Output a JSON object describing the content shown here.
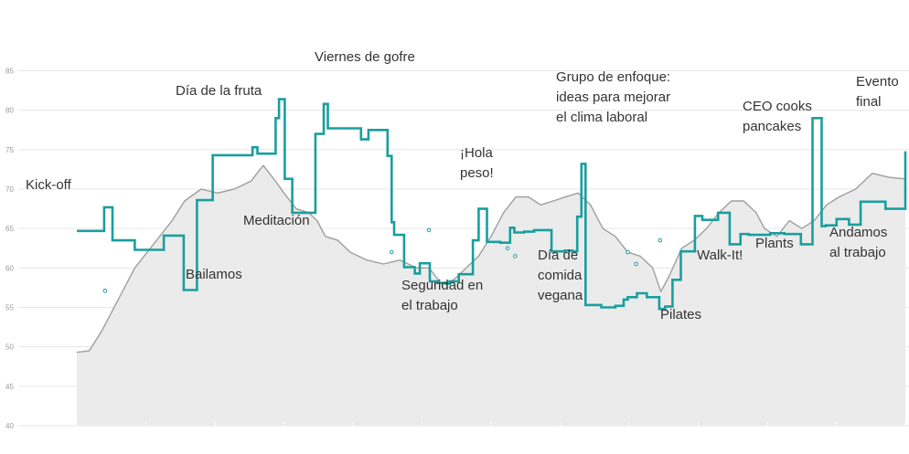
{
  "colors": {
    "background": "#ffffff",
    "grid": "#e6e6e6",
    "area_fill": "#ebebeb",
    "area_line": "#9e9e9e",
    "step_line": "#1a9e9e",
    "scatter": "#1a9e9e",
    "tick_text": "#999999",
    "annotation_text": "#333333"
  },
  "chart_data": {
    "type": "line",
    "title": "",
    "xlabel": "",
    "ylabel": "",
    "ylim": [
      40,
      87
    ],
    "xlim": [
      0,
      100
    ],
    "grid": "horizontal",
    "legend": "none",
    "y_ticks": [
      "40",
      "45",
      "50",
      "55",
      "60",
      "65",
      "70",
      "75",
      "80",
      "85"
    ],
    "series": [
      {
        "kind": "area",
        "x": [
          0,
          1.5,
          3,
          5,
          7,
          8.5,
          10,
          11.5,
          13,
          15,
          17,
          19,
          21,
          22.5,
          24,
          25,
          26.5,
          28,
          29,
          30,
          31.5,
          33,
          35,
          37,
          39,
          41,
          42.5,
          44,
          45.5,
          47,
          48.5,
          50,
          51.5,
          53,
          54.5,
          56,
          57.5,
          59,
          60.5,
          62,
          63.5,
          65,
          66.5,
          68,
          69.5,
          70.5,
          71.5,
          73,
          74.5,
          76,
          77.5,
          79,
          80.5,
          82,
          83,
          84.5,
          86,
          87.5,
          89,
          90.5,
          92,
          94,
          96,
          98,
          100
        ],
        "values": [
          49.3,
          49.5,
          52,
          56,
          60,
          62,
          64,
          66,
          68.5,
          70,
          69.5,
          70,
          71,
          73,
          71,
          69.5,
          67.5,
          67,
          66,
          64,
          63.5,
          62,
          61,
          60.5,
          61,
          60,
          60,
          58,
          58.5,
          60,
          61.5,
          64,
          67,
          69,
          69,
          68,
          68.5,
          69,
          69.5,
          68,
          65,
          64,
          62,
          61.5,
          60,
          57,
          59,
          62.5,
          63.5,
          65,
          67,
          68.5,
          68.5,
          67,
          65,
          64,
          66,
          65,
          66,
          68,
          69,
          70,
          72,
          71.5,
          71.3
        ]
      },
      {
        "kind": "step",
        "x": [
          0,
          2.5,
          3.3,
          4.3,
          7,
          10.5,
          11.3,
          12.9,
          13.7,
          14.5,
          16.4,
          17.2,
          20.4,
          21.2,
          21.8,
          22.8,
          24,
          24.4,
          25.1,
          26,
          28.2,
          28.8,
          29.8,
          30.3,
          31.9,
          34.3,
          35.2,
          36.6,
          37.5,
          38,
          38.3,
          39.5,
          40.8,
          41.4,
          42.6,
          43.6,
          44.5,
          45,
          46.1,
          47.2,
          47.8,
          48.5,
          49.5,
          51.1,
          52.3,
          52.8,
          54,
          55.2,
          56.5,
          57.3,
          58.9,
          59.8,
          60.4,
          60.9,
          61.4,
          63.3,
          65,
          66,
          66.5,
          67.6,
          68.8,
          70.3,
          71,
          71.9,
          72.9,
          74.6,
          75.5,
          77.4,
          78.8,
          80.1,
          81.1,
          83.7,
          85.4,
          87.4,
          88.3,
          88.8,
          89.9,
          90.4,
          91.7,
          92.6,
          93.2,
          94.6,
          95.5,
          97.6,
          100
        ],
        "values": [
          64.7,
          64.7,
          67.7,
          63.5,
          62.3,
          64.1,
          64.1,
          57.2,
          57.2,
          68.6,
          74.3,
          74.3,
          74.3,
          75.3,
          74.5,
          74.5,
          79,
          81.4,
          71.3,
          67,
          67,
          77,
          80.8,
          77.7,
          77.7,
          76.3,
          77.5,
          77.5,
          74.2,
          65.8,
          64.2,
          60.1,
          59.3,
          60.6,
          58.3,
          58.1,
          58,
          58.3,
          59.2,
          59.2,
          63.5,
          67.5,
          63.3,
          63.2,
          65.1,
          64.5,
          64.6,
          64.8,
          64.8,
          62.1,
          62.2,
          62.1,
          66.5,
          73.2,
          55.3,
          55,
          55.2,
          56,
          56.3,
          56.8,
          56.3,
          54.8,
          55.1,
          58.5,
          62.1,
          66.6,
          66.1,
          67,
          63,
          64.3,
          64.2,
          64.4,
          64.3,
          63,
          63,
          79,
          65.3,
          65.4,
          66.2,
          66.2,
          65.5,
          68.4,
          68.4,
          67.5,
          74.8
        ]
      },
      {
        "kind": "scatter",
        "points": [
          [
            3.4,
            57.1
          ],
          [
            38,
            62
          ],
          [
            42.5,
            64.8
          ],
          [
            52,
            62.5
          ],
          [
            52.9,
            61.5
          ],
          [
            66.5,
            62
          ],
          [
            67.5,
            60.5
          ],
          [
            70.4,
            63.5
          ]
        ]
      }
    ],
    "annotations": [
      {
        "text": "Kick-off"
      },
      {
        "text": "Bailamos"
      },
      {
        "text": "Día de la fruta"
      },
      {
        "text": "Meditación"
      },
      {
        "text": "Viernes de gofre"
      },
      {
        "text": "Seguridad en el trabajo"
      },
      {
        "text": "¡Hola peso!"
      },
      {
        "text": "Día de comida vegana"
      },
      {
        "text": "Grupo de enfoque: ideas para mejorar el clima laboral"
      },
      {
        "text": "Pilates"
      },
      {
        "text": "Walk-It!"
      },
      {
        "text": "CEO cooks pancakes"
      },
      {
        "text": "Plants"
      },
      {
        "text": "Andamos al trabajo"
      },
      {
        "text": "Evento final"
      }
    ]
  }
}
